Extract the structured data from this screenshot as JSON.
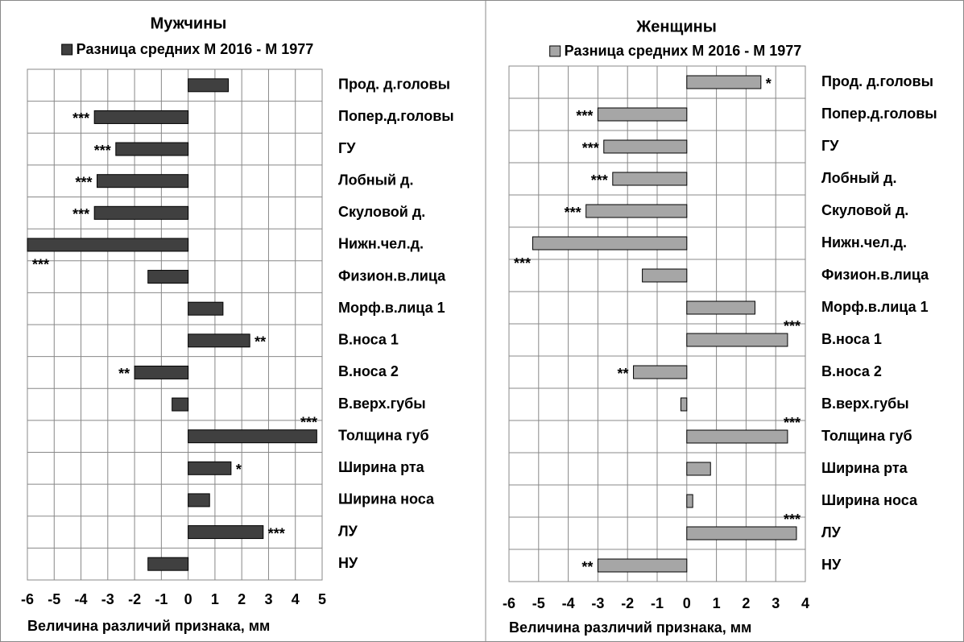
{
  "chart_data": [
    {
      "type": "barh",
      "title": "Мужчины",
      "xlabel": "Величина различий признака, мм",
      "categories": [
        "Прод. д.головы",
        "Попер.д.головы",
        "ГУ",
        "Лобный д.",
        "Скуловой д.",
        "Нижн.чел.д.",
        "Физион.в.лица",
        "Морф.в.лица 1",
        "В.носа 1",
        "В.носа 2",
        "В.верх.губы",
        "Толщина губ",
        "Ширина рта",
        "Ширина носа",
        "ЛУ",
        "НУ"
      ],
      "series": [
        {
          "name": "Разница средних М 2016 - М 1977",
          "color": "#404040",
          "values": [
            1.5,
            -3.5,
            -2.7,
            -3.4,
            -3.5,
            -6.0,
            -1.5,
            1.3,
            2.3,
            -2.0,
            -0.6,
            4.8,
            1.6,
            0.8,
            2.8,
            -1.5
          ]
        }
      ],
      "significance": [
        null,
        "***",
        "***",
        "***",
        "***",
        "***",
        null,
        null,
        "**",
        "**",
        null,
        "***",
        "*",
        null,
        "***",
        null
      ],
      "xlim": [
        -6,
        5
      ],
      "xticks": [
        -6,
        -5,
        -4,
        -3,
        -2,
        -1,
        0,
        1,
        2,
        3,
        4,
        5
      ],
      "grid": true
    },
    {
      "type": "barh",
      "title": "Женщины",
      "xlabel": "Величина различий признака, мм",
      "categories": [
        "Прод. д.головы",
        "Попер.д.головы",
        "ГУ",
        "Лобный д.",
        "Скуловой д.",
        "Нижн.чел.д.",
        "Физион.в.лица",
        "Морф.в.лица 1",
        "В.носа 1",
        "В.носа 2",
        "В.верх.губы",
        "Толщина губ",
        "Ширина рта",
        "Ширина носа",
        "ЛУ",
        "НУ"
      ],
      "series": [
        {
          "name": "Разница средних М 2016 - М 1977",
          "color": "#a6a6a6",
          "values": [
            2.5,
            -3.0,
            -2.8,
            -2.5,
            -3.4,
            -5.2,
            -1.5,
            2.3,
            3.4,
            -1.8,
            -0.2,
            3.4,
            0.8,
            0.2,
            3.7,
            -3.0
          ]
        }
      ],
      "significance": [
        "*",
        "***",
        "***",
        "***",
        "***",
        "***",
        null,
        null,
        "***",
        "**",
        null,
        "***",
        null,
        null,
        "***",
        "**"
      ],
      "xlim": [
        -6,
        4
      ],
      "xticks": [
        -6,
        -5,
        -4,
        -3,
        -2,
        -1,
        0,
        1,
        2,
        3,
        4
      ],
      "grid": true
    }
  ]
}
